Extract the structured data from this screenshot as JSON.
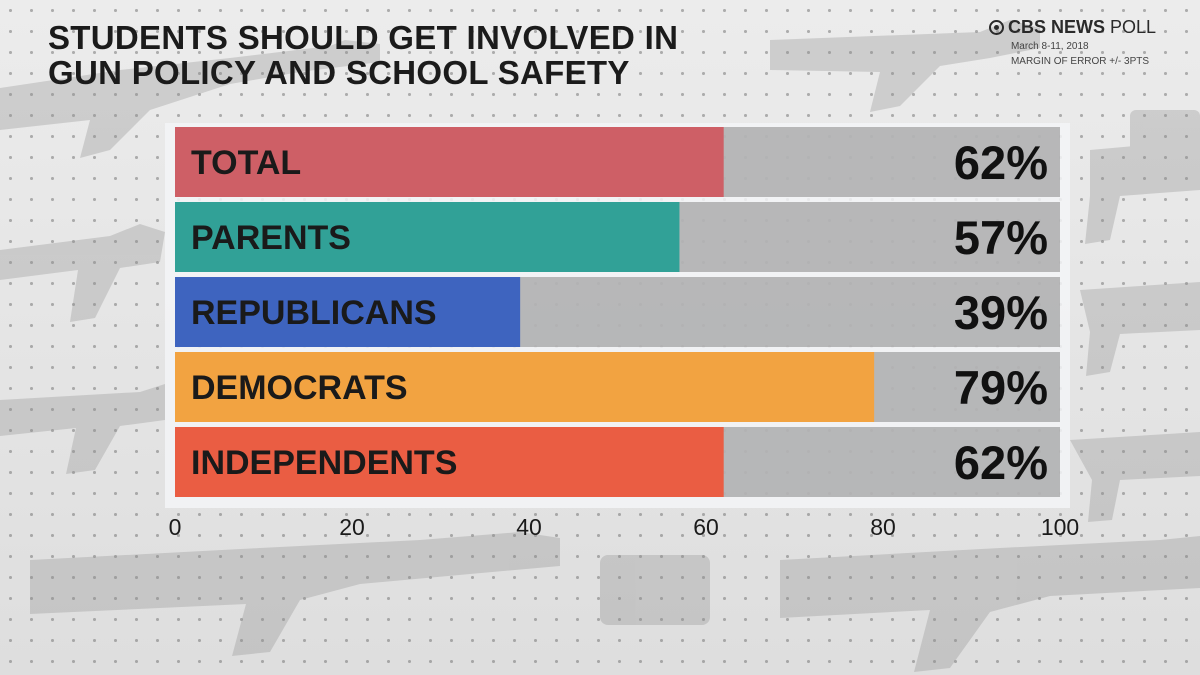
{
  "header": {
    "title_line1": "STUDENTS SHOULD GET INVOLVED IN",
    "title_line2": "GUN POLICY AND SCHOOL SAFETY",
    "brand_name": "CBS NEWS",
    "brand_suffix": "POLL",
    "date": "March 8-11, 2018",
    "margin": "MARGIN OF ERROR +/- 3PTS"
  },
  "chart_data": {
    "type": "bar",
    "orientation": "horizontal",
    "title": "STUDENTS SHOULD GET INVOLVED IN GUN POLICY AND SCHOOL SAFETY",
    "categories": [
      "TOTAL",
      "PARENTS",
      "REPUBLICANS",
      "DEMOCRATS",
      "INDEPENDENTS"
    ],
    "values": [
      62,
      57,
      39,
      79,
      62
    ],
    "value_labels": [
      "62%",
      "57%",
      "39%",
      "79%",
      "62%"
    ],
    "colors": [
      "#ce5f66",
      "#31a197",
      "#3e64bf",
      "#f2a341",
      "#ea5d43"
    ],
    "xlim": [
      0,
      100
    ],
    "xticks": [
      0,
      20,
      40,
      60,
      80,
      100
    ],
    "tick_labels": [
      "0",
      "20",
      "40",
      "60",
      "80",
      "100"
    ],
    "xlabel": "",
    "ylabel": ""
  }
}
